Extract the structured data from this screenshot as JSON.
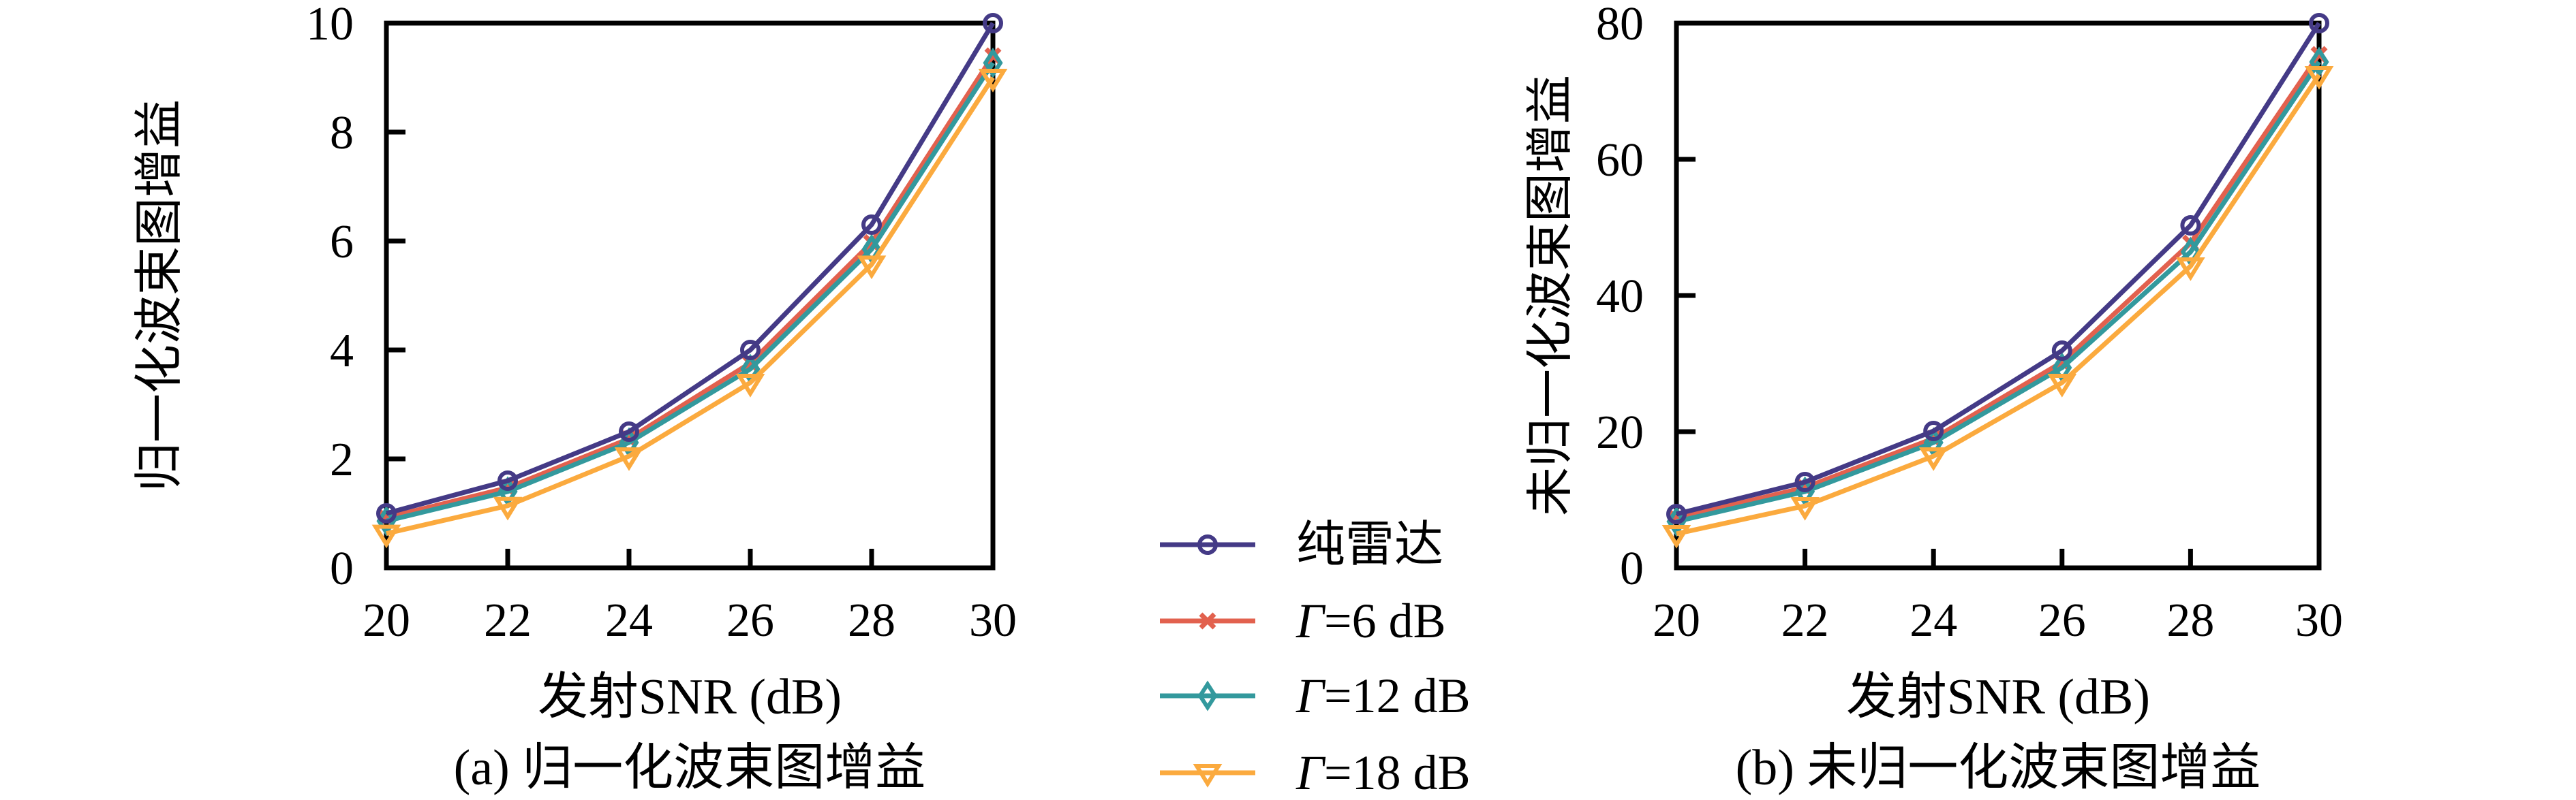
{
  "legend": {
    "items": [
      {
        "key": "pure-radar",
        "prefix_italic": "",
        "label": "纯雷达",
        "color": "#443a86",
        "marker": "circle"
      },
      {
        "key": "gamma-6db",
        "prefix_italic": "Γ",
        "label": "=6 dB",
        "color": "#e2614e",
        "marker": "x"
      },
      {
        "key": "gamma-12db",
        "prefix_italic": "Γ",
        "label": "=12 dB",
        "color": "#33999d",
        "marker": "diamond"
      },
      {
        "key": "gamma-18db",
        "prefix_italic": "Γ",
        "label": "=18 dB",
        "color": "#fbaa3e",
        "marker": "triangle-down"
      }
    ]
  },
  "chart_data": [
    {
      "id": "chart-a",
      "type": "line",
      "title": "(a) 归一化波束图增益",
      "xlabel": "发射SNR (dB)",
      "ylabel": "归一化波束图增益",
      "x": [
        20,
        22,
        24,
        26,
        28,
        30
      ],
      "xlim": [
        20,
        30
      ],
      "ylim": [
        0,
        10
      ],
      "xticks": [
        20,
        22,
        24,
        26,
        28,
        30
      ],
      "yticks": [
        0,
        2,
        4,
        6,
        8,
        10
      ],
      "grid": false,
      "legend_position": "center-between-charts",
      "series": [
        {
          "key": "pure-radar",
          "name": "纯雷达",
          "marker": "circle",
          "color": "#443a86",
          "values": [
            1.0,
            1.6,
            2.5,
            4.0,
            6.3,
            10.0
          ]
        },
        {
          "key": "gamma-6db",
          "name": "Γ=6 dB",
          "marker": "x",
          "color": "#e2614e",
          "values": [
            0.92,
            1.47,
            2.37,
            3.76,
            5.97,
            9.4
          ]
        },
        {
          "key": "gamma-12db",
          "name": "Γ=12 dB",
          "marker": "diamond",
          "color": "#33999d",
          "values": [
            0.86,
            1.4,
            2.3,
            3.65,
            5.85,
            9.27
          ]
        },
        {
          "key": "gamma-18db",
          "name": "Γ=18 dB",
          "marker": "triangle-down",
          "color": "#fbaa3e",
          "values": [
            0.63,
            1.14,
            2.05,
            3.4,
            5.57,
            9.0
          ]
        }
      ]
    },
    {
      "id": "chart-b",
      "type": "line",
      "title": "(b) 未归一化波束图增益",
      "xlabel": "发射SNR (dB)",
      "ylabel": "未归一化波束图增益",
      "x": [
        20,
        22,
        24,
        26,
        28,
        30
      ],
      "xlim": [
        20,
        30
      ],
      "ylim": [
        0,
        80
      ],
      "xticks": [
        20,
        22,
        24,
        26,
        28,
        30
      ],
      "yticks": [
        0,
        20,
        40,
        60,
        80
      ],
      "grid": false,
      "legend_position": "center-between-charts",
      "series": [
        {
          "key": "pure-radar",
          "name": "纯雷达",
          "marker": "circle",
          "color": "#443a86",
          "values": [
            7.9,
            12.6,
            20.1,
            31.9,
            50.3,
            80.0
          ]
        },
        {
          "key": "gamma-6db",
          "name": "Γ=6 dB",
          "marker": "x",
          "color": "#e2614e",
          "values": [
            7.3,
            11.8,
            19.0,
            30.2,
            47.7,
            75.4
          ]
        },
        {
          "key": "gamma-12db",
          "name": "Γ=12 dB",
          "marker": "diamond",
          "color": "#33999d",
          "values": [
            6.8,
            11.2,
            18.4,
            29.4,
            46.4,
            74.3
          ]
        },
        {
          "key": "gamma-18db",
          "name": "Γ=18 dB",
          "marker": "triangle-down",
          "color": "#fbaa3e",
          "values": [
            5.0,
            9.1,
            16.4,
            27.2,
            44.3,
            72.4
          ]
        }
      ]
    }
  ]
}
